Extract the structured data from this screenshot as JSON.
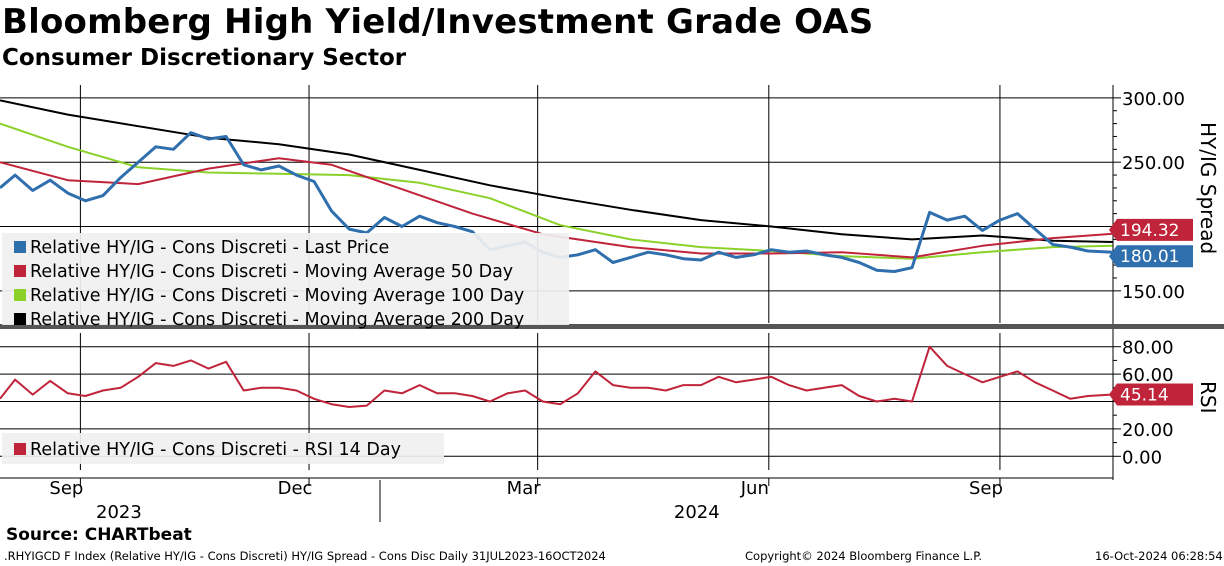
{
  "header": {
    "title": "Bloomberg High Yield/Investment Grade OAS",
    "subtitle": "Consumer Discretionary Sector"
  },
  "footer": {
    "source": "Source: CHARTbeat",
    "ticker_line": ".RHYIGCD F Index (Relative HY/IG - Cons Discreti) HY/IG Spread - Cons Disc  Daily 31JUL2023-16OCT2024",
    "copyright": "Copyright© 2024 Bloomberg Finance L.P.",
    "timestamp": "16-Oct-2024 06:28:54"
  },
  "colors": {
    "last_price": "#2f6fae",
    "ma50": "#c0243a",
    "ma100": "#8bd12a",
    "ma200": "#000000",
    "rsi": "#c0243a"
  },
  "chart_data": [
    {
      "type": "line",
      "panel": "upper",
      "ylabel": "HY/IG Spread",
      "ylim": [
        125,
        310
      ],
      "yticks": [
        "150.00",
        "250.00",
        "300.00"
      ],
      "x_range": [
        "2023-07-31",
        "2024-10-16"
      ],
      "x_tick_labels": [
        {
          "label": "Sep",
          "date": "2023-09-01"
        },
        {
          "label": "Dec",
          "date": "2023-12-01"
        },
        {
          "label": "Mar",
          "date": "2024-03-01"
        },
        {
          "label": "Jun",
          "date": "2024-06-01"
        },
        {
          "label": "Sep",
          "date": "2024-09-01"
        }
      ],
      "year_labels": [
        {
          "label": "2023",
          "date": "2023-10-15"
        },
        {
          "label": "2024",
          "date": "2024-06-01"
        }
      ],
      "grid": true,
      "legend_position": "bottom-left",
      "last_value_badges": [
        {
          "series": "Relative HY/IG - Cons Discreti - Moving Average 50 Day",
          "value": "194.32",
          "y": 194.32
        },
        {
          "series": "Relative HY/IG - Cons Discreti - Last Price",
          "value": "180.01",
          "y": 180.01
        }
      ],
      "series": [
        {
          "name": "Relative HY/IG - Cons Discreti - Last Price",
          "color": "#2f6fae",
          "points": [
            [
              "2023-07-31",
              230
            ],
            [
              "2023-08-06",
              240
            ],
            [
              "2023-08-13",
              228
            ],
            [
              "2023-08-20",
              236
            ],
            [
              "2023-08-27",
              226
            ],
            [
              "2023-09-03",
              220
            ],
            [
              "2023-09-10",
              224
            ],
            [
              "2023-09-17",
              238
            ],
            [
              "2023-09-24",
              250
            ],
            [
              "2023-10-01",
              262
            ],
            [
              "2023-10-08",
              260
            ],
            [
              "2023-10-15",
              273
            ],
            [
              "2023-10-22",
              268
            ],
            [
              "2023-10-29",
              270
            ],
            [
              "2023-11-05",
              248
            ],
            [
              "2023-11-12",
              244
            ],
            [
              "2023-11-19",
              247
            ],
            [
              "2023-11-26",
              240
            ],
            [
              "2023-12-03",
              235
            ],
            [
              "2023-12-10",
              212
            ],
            [
              "2023-12-17",
              198
            ],
            [
              "2023-12-24",
              195
            ],
            [
              "2023-12-31",
              207
            ],
            [
              "2024-01-07",
              200
            ],
            [
              "2024-01-14",
              208
            ],
            [
              "2024-01-21",
              203
            ],
            [
              "2024-01-28",
              200
            ],
            [
              "2024-02-04",
              196
            ],
            [
              "2024-02-11",
              182
            ],
            [
              "2024-02-18",
              185
            ],
            [
              "2024-02-25",
              188
            ],
            [
              "2024-03-03",
              180
            ],
            [
              "2024-03-10",
              176
            ],
            [
              "2024-03-17",
              178
            ],
            [
              "2024-03-24",
              182
            ],
            [
              "2024-03-31",
              172
            ],
            [
              "2024-04-07",
              176
            ],
            [
              "2024-04-14",
              180
            ],
            [
              "2024-04-21",
              178
            ],
            [
              "2024-04-28",
              175
            ],
            [
              "2024-05-05",
              174
            ],
            [
              "2024-05-12",
              180
            ],
            [
              "2024-05-19",
              176
            ],
            [
              "2024-05-26",
              178
            ],
            [
              "2024-06-02",
              182
            ],
            [
              "2024-06-09",
              180
            ],
            [
              "2024-06-16",
              181
            ],
            [
              "2024-06-23",
              178
            ],
            [
              "2024-06-30",
              176
            ],
            [
              "2024-07-07",
              172
            ],
            [
              "2024-07-14",
              166
            ],
            [
              "2024-07-21",
              165
            ],
            [
              "2024-07-28",
              168
            ],
            [
              "2024-08-04",
              211
            ],
            [
              "2024-08-11",
              205
            ],
            [
              "2024-08-18",
              208
            ],
            [
              "2024-08-25",
              197
            ],
            [
              "2024-09-01",
              205
            ],
            [
              "2024-09-08",
              210
            ],
            [
              "2024-09-15",
              198
            ],
            [
              "2024-09-22",
              186
            ],
            [
              "2024-09-29",
              184
            ],
            [
              "2024-10-06",
              181
            ],
            [
              "2024-10-16",
              180
            ]
          ]
        },
        {
          "name": "Relative HY/IG - Cons Discreti - Moving Average 50 Day",
          "color": "#c0243a",
          "points": [
            [
              "2023-07-31",
              250
            ],
            [
              "2023-08-27",
              236
            ],
            [
              "2023-09-24",
              233
            ],
            [
              "2023-10-22",
              245
            ],
            [
              "2023-11-19",
              253
            ],
            [
              "2023-12-10",
              248
            ],
            [
              "2024-01-07",
              229
            ],
            [
              "2024-02-04",
              210
            ],
            [
              "2024-03-03",
              194
            ],
            [
              "2024-04-07",
              184
            ],
            [
              "2024-05-05",
              179
            ],
            [
              "2024-06-02",
              179
            ],
            [
              "2024-06-30",
              180
            ],
            [
              "2024-07-28",
              176
            ],
            [
              "2024-08-25",
              185
            ],
            [
              "2024-09-22",
              191
            ],
            [
              "2024-10-16",
              194.32
            ]
          ]
        },
        {
          "name": "Relative HY/IG - Cons Discreti - Moving Average 100 Day",
          "color": "#8bd12a",
          "points": [
            [
              "2023-07-31",
              280
            ],
            [
              "2023-08-27",
              262
            ],
            [
              "2023-09-24",
              246
            ],
            [
              "2023-10-22",
              242
            ],
            [
              "2023-11-19",
              241
            ],
            [
              "2023-12-17",
              240
            ],
            [
              "2024-01-14",
              234
            ],
            [
              "2024-02-11",
              222
            ],
            [
              "2024-03-10",
              201
            ],
            [
              "2024-04-07",
              190
            ],
            [
              "2024-05-05",
              184
            ],
            [
              "2024-06-02",
              181
            ],
            [
              "2024-06-30",
              177
            ],
            [
              "2024-07-28",
              175
            ],
            [
              "2024-08-25",
              180
            ],
            [
              "2024-09-22",
              184
            ],
            [
              "2024-10-16",
              185
            ]
          ]
        },
        {
          "name": "Relative HY/IG - Cons Discreti - Moving Average 200 Day",
          "color": "#000000",
          "points": [
            [
              "2023-07-31",
              298
            ],
            [
              "2023-08-27",
              287
            ],
            [
              "2023-09-24",
              278
            ],
            [
              "2023-10-22",
              269
            ],
            [
              "2023-11-19",
              264
            ],
            [
              "2023-12-17",
              256
            ],
            [
              "2024-01-14",
              244
            ],
            [
              "2024-02-11",
              232
            ],
            [
              "2024-03-10",
              222
            ],
            [
              "2024-04-07",
              213
            ],
            [
              "2024-05-05",
              205
            ],
            [
              "2024-06-02",
              200
            ],
            [
              "2024-06-30",
              194
            ],
            [
              "2024-07-28",
              190
            ],
            [
              "2024-08-25",
              193
            ],
            [
              "2024-09-22",
              189
            ],
            [
              "2024-10-16",
              188
            ]
          ]
        }
      ]
    },
    {
      "type": "line",
      "panel": "lower",
      "ylabel": "RSI",
      "ylim": [
        -10,
        90
      ],
      "yticks": [
        "0.00",
        "20.00",
        "60.00",
        "80.00"
      ],
      "legend_position": "bottom-left",
      "last_value_badges": [
        {
          "series": "Relative HY/IG - Cons Discreti - RSI 14 Day",
          "value": "45.14",
          "y": 45.14
        }
      ],
      "series": [
        {
          "name": "Relative HY/IG - Cons Discreti - RSI 14 Day",
          "color": "#c0243a",
          "points": [
            [
              "2023-07-31",
              42
            ],
            [
              "2023-08-06",
              56
            ],
            [
              "2023-08-13",
              45
            ],
            [
              "2023-08-20",
              55
            ],
            [
              "2023-08-27",
              46
            ],
            [
              "2023-09-03",
              44
            ],
            [
              "2023-09-10",
              48
            ],
            [
              "2023-09-17",
              50
            ],
            [
              "2023-09-24",
              58
            ],
            [
              "2023-10-01",
              68
            ],
            [
              "2023-10-08",
              66
            ],
            [
              "2023-10-15",
              70
            ],
            [
              "2023-10-22",
              64
            ],
            [
              "2023-10-29",
              69
            ],
            [
              "2023-11-05",
              48
            ],
            [
              "2023-11-12",
              50
            ],
            [
              "2023-11-19",
              50
            ],
            [
              "2023-11-26",
              48
            ],
            [
              "2023-12-03",
              42
            ],
            [
              "2023-12-10",
              38
            ],
            [
              "2023-12-17",
              36
            ],
            [
              "2023-12-24",
              37
            ],
            [
              "2023-12-31",
              48
            ],
            [
              "2024-01-07",
              46
            ],
            [
              "2024-01-14",
              52
            ],
            [
              "2024-01-21",
              46
            ],
            [
              "2024-01-28",
              46
            ],
            [
              "2024-02-04",
              44
            ],
            [
              "2024-02-11",
              40
            ],
            [
              "2024-02-18",
              46
            ],
            [
              "2024-02-25",
              48
            ],
            [
              "2024-03-03",
              40
            ],
            [
              "2024-03-10",
              38
            ],
            [
              "2024-03-17",
              46
            ],
            [
              "2024-03-24",
              62
            ],
            [
              "2024-03-31",
              52
            ],
            [
              "2024-04-07",
              50
            ],
            [
              "2024-04-14",
              50
            ],
            [
              "2024-04-21",
              48
            ],
            [
              "2024-04-28",
              52
            ],
            [
              "2024-05-05",
              52
            ],
            [
              "2024-05-12",
              58
            ],
            [
              "2024-05-19",
              54
            ],
            [
              "2024-05-26",
              56
            ],
            [
              "2024-06-02",
              58
            ],
            [
              "2024-06-09",
              52
            ],
            [
              "2024-06-16",
              48
            ],
            [
              "2024-06-23",
              50
            ],
            [
              "2024-06-30",
              52
            ],
            [
              "2024-07-07",
              44
            ],
            [
              "2024-07-14",
              40
            ],
            [
              "2024-07-21",
              42
            ],
            [
              "2024-07-28",
              40
            ],
            [
              "2024-08-04",
              80
            ],
            [
              "2024-08-11",
              66
            ],
            [
              "2024-08-18",
              60
            ],
            [
              "2024-08-25",
              54
            ],
            [
              "2024-09-01",
              58
            ],
            [
              "2024-09-08",
              62
            ],
            [
              "2024-09-15",
              54
            ],
            [
              "2024-09-22",
              48
            ],
            [
              "2024-09-29",
              42
            ],
            [
              "2024-10-06",
              44
            ],
            [
              "2024-10-16",
              45.14
            ]
          ]
        }
      ]
    }
  ]
}
